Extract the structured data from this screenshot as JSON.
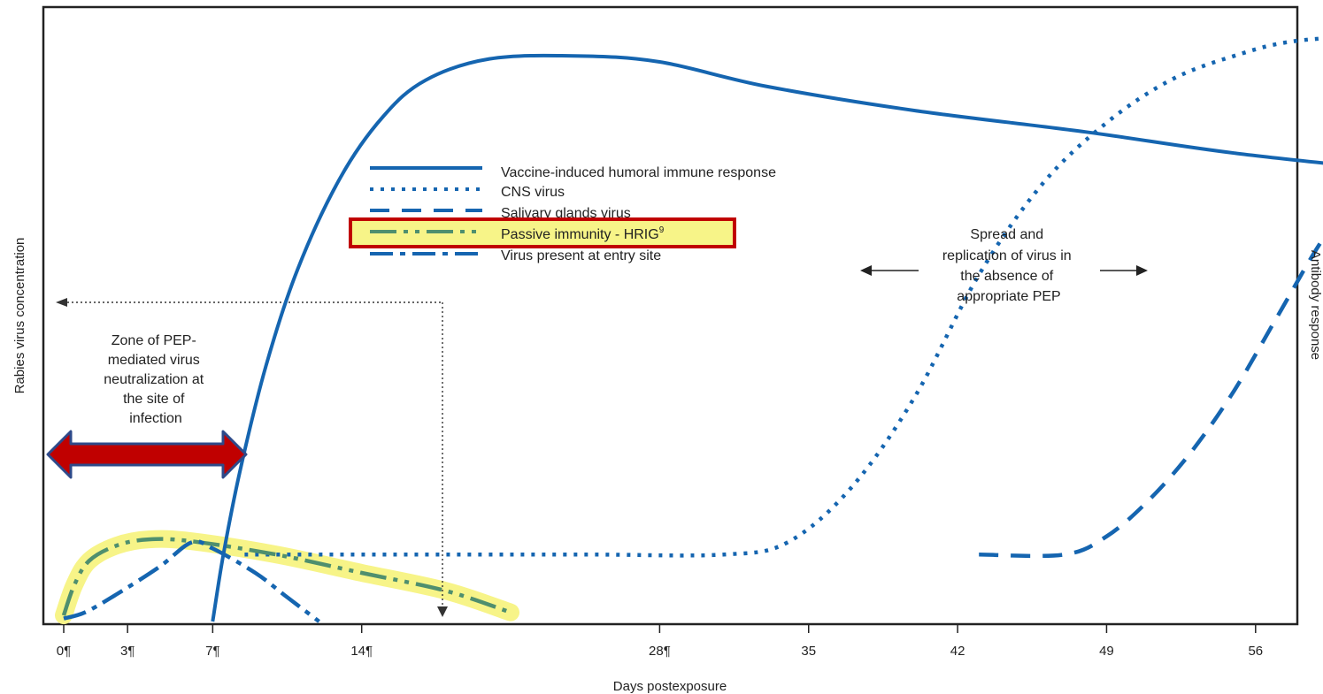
{
  "chart_data": {
    "type": "line",
    "xlabel": "Days postexposure",
    "ylabel_left": "Rabies virus concentration",
    "ylabel_right": "Antibody response",
    "ticks": [
      {
        "day": 0,
        "label": "0",
        "mark": "¶"
      },
      {
        "day": 3,
        "label": "3",
        "mark": "¶"
      },
      {
        "day": 7,
        "label": "7",
        "mark": "¶"
      },
      {
        "day": 14,
        "label": "14",
        "mark": "¶"
      },
      {
        "day": 28,
        "label": "28",
        "mark": "¶"
      },
      {
        "day": 35,
        "label": "35",
        "mark": ""
      },
      {
        "day": 42,
        "label": "42",
        "mark": ""
      },
      {
        "day": 49,
        "label": "49",
        "mark": ""
      },
      {
        "day": 56,
        "label": "56",
        "mark": ""
      }
    ],
    "ylim": [
      0,
      100
    ],
    "grid": false,
    "legend_position": "upper-center",
    "series": [
      {
        "name": "Vaccine-induced humoral  immune response",
        "style": "solid",
        "color": "#1565b0",
        "points": [
          [
            7,
            0
          ],
          [
            7.5,
            11
          ],
          [
            8.3,
            25
          ],
          [
            9.5,
            42
          ],
          [
            11,
            58
          ],
          [
            13,
            73
          ],
          [
            15,
            83
          ],
          [
            17,
            89
          ],
          [
            20,
            92.5
          ],
          [
            24,
            93
          ],
          [
            28,
            92
          ],
          [
            33,
            88
          ],
          [
            40,
            84
          ],
          [
            48,
            80.5
          ],
          [
            55,
            77
          ],
          [
            63,
            74
          ]
        ]
      },
      {
        "name": "CNS virus",
        "style": "dotted",
        "color": "#1565b0",
        "points": [
          [
            8.5,
            11
          ],
          [
            15,
            11
          ],
          [
            20,
            11
          ],
          [
            25,
            11
          ],
          [
            31,
            11
          ],
          [
            34,
            13
          ],
          [
            37,
            22
          ],
          [
            40,
            37
          ],
          [
            43,
            57
          ],
          [
            46,
            72
          ],
          [
            49,
            82
          ],
          [
            52,
            89
          ],
          [
            55,
            93
          ],
          [
            58,
            95.5
          ],
          [
            63,
            96.5
          ]
        ]
      },
      {
        "name": "Salivary glands virus",
        "style": "dashed",
        "color": "#1565b0",
        "points": [
          [
            43,
            11
          ],
          [
            47,
            11
          ],
          [
            49,
            14
          ],
          [
            51,
            20
          ],
          [
            53,
            28
          ],
          [
            55,
            38
          ],
          [
            57,
            50
          ],
          [
            59,
            62
          ],
          [
            61,
            72
          ],
          [
            63,
            81
          ]
        ]
      },
      {
        "name": "Passive immunity - HRIG",
        "name_sup": "9",
        "style": "dash-dot-dot",
        "color": "#4f8f6e",
        "highlight": "#f7f488",
        "points": [
          [
            0,
            1
          ],
          [
            0.5,
            6
          ],
          [
            1.2,
            10
          ],
          [
            2.5,
            12.5
          ],
          [
            4,
            13.5
          ],
          [
            6,
            13.2
          ],
          [
            10,
            11
          ],
          [
            14,
            8
          ],
          [
            18,
            5
          ],
          [
            21,
            1.5
          ]
        ]
      },
      {
        "name": "Virus present at entry site",
        "style": "dash-dot",
        "color": "#1565b0",
        "points": [
          [
            0,
            0.5
          ],
          [
            1,
            1.5
          ],
          [
            2.5,
            4.5
          ],
          [
            4.5,
            9
          ],
          [
            6,
            13
          ],
          [
            7,
            12
          ],
          [
            9,
            8
          ],
          [
            10.5,
            4
          ],
          [
            12,
            0
          ]
        ]
      }
    ],
    "annotations": {
      "pep_zone": [
        "Zone of PEP-",
        "mediated virus",
        "neutralization at",
        "the site of",
        "infection"
      ],
      "spread": [
        "Spread and",
        "replication of virus in",
        "the absence of",
        "appropriate PEP"
      ]
    },
    "highlight_box_color": "#c00000",
    "arrow_color": "#c00000",
    "arrow_outline_color": "#2e4a8a"
  }
}
